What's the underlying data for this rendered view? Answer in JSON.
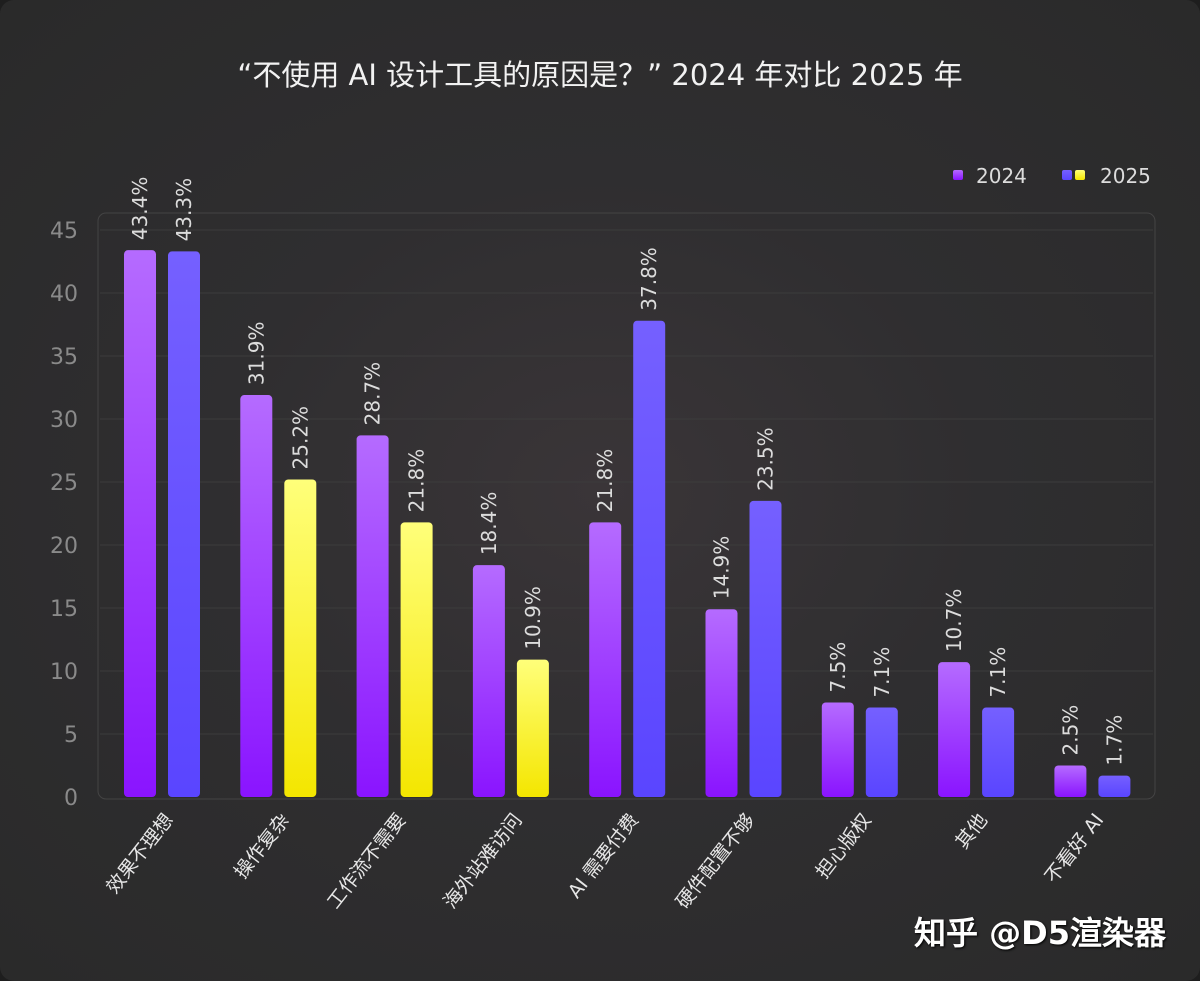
{
  "chart_data": {
    "type": "bar",
    "title": "“不使用 AI 设计工具的原因是？” 2024 年对比 2025 年",
    "xlabel": "",
    "ylabel": "",
    "ylim": [
      0,
      45
    ],
    "yticks": [
      0,
      5,
      10,
      15,
      20,
      25,
      30,
      35,
      40,
      45
    ],
    "grid": true,
    "legend_position": "top-right",
    "categories": [
      "效果不理想",
      "操作复杂",
      "工作流不需要",
      "海外站难访问",
      "AI 需要付费",
      "硬件配置不够",
      "担心版权",
      "其他",
      "不看好 AI"
    ],
    "series": [
      {
        "name": "2024",
        "values": [
          43.4,
          31.9,
          28.7,
          18.4,
          21.8,
          14.9,
          7.5,
          10.7,
          2.5
        ],
        "labels": [
          "43.4%",
          "31.9%",
          "28.7%",
          "18.4%",
          "21.8%",
          "14.9%",
          "7.5%",
          "10.7%",
          "2.5%"
        ],
        "colors": [
          "#8e1cff"
        ]
      },
      {
        "name": "2025",
        "values": [
          43.3,
          25.2,
          21.8,
          10.9,
          37.8,
          23.5,
          7.1,
          7.1,
          1.7
        ],
        "labels": [
          "43.3%",
          "25.2%",
          "21.8%",
          "10.9%",
          "37.8%",
          "23.5%",
          "7.1%",
          "7.1%",
          "1.7%"
        ],
        "colors": [
          "#5c4bff",
          "#f7ef1e"
        ],
        "highlighted_categories": [
          "操作复杂",
          "工作流不需要",
          "海外站难访问"
        ]
      }
    ]
  },
  "watermark": "知乎 @D5渲染器"
}
